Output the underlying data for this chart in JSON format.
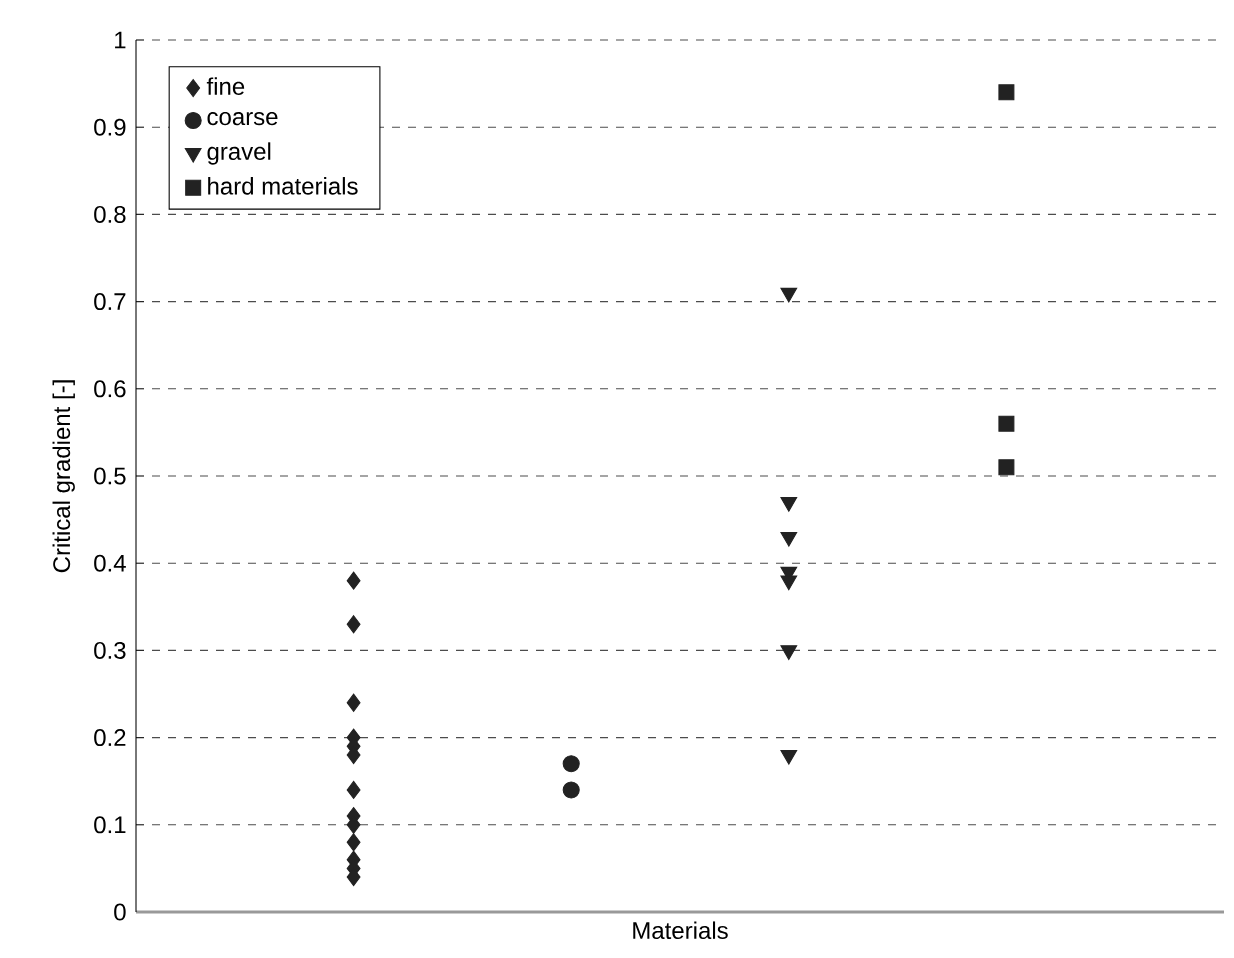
{
  "chart_data": {
    "type": "scatter",
    "xlabel": "Materials",
    "ylabel": "Critical gradient [-]",
    "categories": [
      null,
      null,
      null,
      null
    ],
    "ylim": [
      0,
      1
    ],
    "yticks": [
      0,
      0.1,
      0.2,
      0.3,
      0.4,
      0.5,
      0.6,
      0.7,
      0.8,
      0.9,
      1
    ],
    "tick_labels": "y",
    "grid": "y",
    "legend": "top left",
    "series": [
      {
        "name": "fine",
        "color": "#222222",
        "marker": "diamond",
        "values": [
          0.38,
          null,
          null,
          null
        ]
      },
      {
        "color": "#222222",
        "marker": "diamond",
        "values": [
          0.33,
          null,
          null,
          null
        ]
      },
      {
        "color": "#222222",
        "marker": "diamond",
        "values": [
          0.24,
          null,
          null,
          null
        ]
      },
      {
        "color": "#222222",
        "marker": "diamond",
        "values": [
          0.2,
          null,
          null,
          null
        ]
      },
      {
        "color": "#222222",
        "marker": "diamond",
        "values": [
          0.19,
          null,
          null,
          null
        ]
      },
      {
        "color": "#222222",
        "marker": "diamond",
        "values": [
          0.18,
          null,
          null,
          null
        ]
      },
      {
        "color": "#222222",
        "marker": "diamond",
        "values": [
          0.14,
          null,
          null,
          null
        ]
      },
      {
        "color": "#222222",
        "marker": "diamond",
        "values": [
          0.11,
          null,
          null,
          null
        ]
      },
      {
        "color": "#222222",
        "marker": "diamond",
        "values": [
          0.1,
          null,
          null,
          null
        ]
      },
      {
        "color": "#222222",
        "marker": "diamond",
        "values": [
          0.08,
          null,
          null,
          null
        ]
      },
      {
        "color": "#222222",
        "marker": "diamond",
        "values": [
          0.06,
          null,
          null,
          null
        ]
      },
      {
        "color": "#222222",
        "marker": "diamond",
        "values": [
          0.05,
          null,
          null,
          null
        ]
      },
      {
        "color": "#222222",
        "marker": "diamond",
        "values": [
          0.04,
          null,
          null,
          null
        ]
      },
      {
        "name": "coarse",
        "color": "#222222",
        "marker": "circle",
        "values": [
          null,
          0.17,
          null,
          null
        ]
      },
      {
        "color": "#222222",
        "marker": "circle",
        "values": [
          null,
          0.14,
          null,
          null
        ]
      },
      {
        "name": "gravel",
        "color": "#222222",
        "marker": "triangle",
        "values": [
          null,
          null,
          0.71,
          null
        ]
      },
      {
        "color": "#222222",
        "marker": "triangle",
        "values": [
          null,
          null,
          0.47,
          null
        ]
      },
      {
        "color": "#222222",
        "marker": "triangle",
        "values": [
          null,
          null,
          0.43,
          null
        ]
      },
      {
        "color": "#222222",
        "marker": "triangle",
        "values": [
          null,
          null,
          0.39,
          null
        ]
      },
      {
        "color": "#222222",
        "marker": "triangle",
        "values": [
          null,
          null,
          0.38,
          null
        ]
      },
      {
        "color": "#222222",
        "marker": "triangle",
        "values": [
          null,
          null,
          0.3,
          null
        ]
      },
      {
        "color": "#222222",
        "marker": "triangle",
        "values": [
          null,
          null,
          0.18,
          null
        ]
      },
      {
        "name": "hard materials",
        "color": "#222222",
        "marker": "square",
        "values": [
          null,
          null,
          null,
          0.94
        ]
      },
      {
        "color": "#222222",
        "marker": "square",
        "values": [
          null,
          null,
          null,
          0.56
        ]
      },
      {
        "color": "#222222",
        "marker": "square",
        "values": [
          null,
          null,
          null,
          0.51
        ]
      }
    ]
  }
}
